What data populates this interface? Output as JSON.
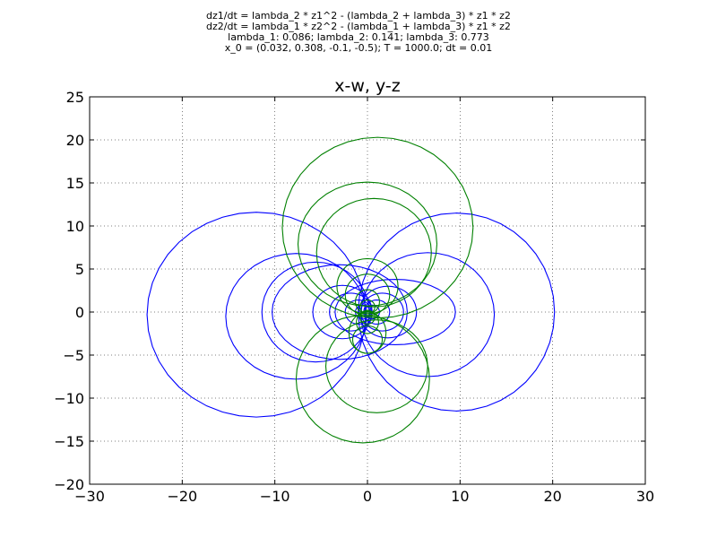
{
  "header": {
    "lines": [
      "dz1/dt = lambda_2 * z1^2 - (lambda_2 + lambda_3) * z1 * z2",
      "dz2/dt = lambda_1 * z2^2 - (lambda_1 + lambda_3) * z1 * z2",
      "lambda_1: 0.086; lambda_2: 0.141; lambda_3: 0.773",
      "x_0 = (0.032, 0.308, -0.1, -0.5); T = 1000.0; dt = 0.01"
    ]
  },
  "chart_data": {
    "type": "line",
    "title": "x-w, y-z",
    "xlabel": "",
    "ylabel": "",
    "xlim": [
      -30,
      30
    ],
    "ylim": [
      -20,
      25
    ],
    "xticks": [
      -30,
      -20,
      -10,
      0,
      10,
      20,
      30
    ],
    "yticks": [
      -20,
      -15,
      -10,
      -5,
      0,
      5,
      10,
      15,
      20,
      25
    ],
    "xtick_labels": [
      "−30",
      "−20",
      "−10",
      "0",
      "10",
      "20",
      "30"
    ],
    "ytick_labels": [
      "−20",
      "−15",
      "−10",
      "−5",
      "0",
      "5",
      "10",
      "15",
      "20",
      "25"
    ],
    "grid": true,
    "colors": {
      "series_1": "#0000ff",
      "series_2": "#008000"
    },
    "series": [
      {
        "color": "#0000ff",
        "loops": [
          {
            "cx": -12.0,
            "cy": -0.3,
            "rx": 11.8,
            "ry": 11.9
          },
          {
            "cx": 9.6,
            "cy": 0.0,
            "rx": 10.6,
            "ry": 11.5
          },
          {
            "cx": -7.7,
            "cy": -0.5,
            "rx": 7.6,
            "ry": 7.3
          },
          {
            "cx": 6.5,
            "cy": -0.3,
            "rx": 7.2,
            "ry": 7.2
          },
          {
            "cx": -5.6,
            "cy": 0.0,
            "rx": 5.8,
            "ry": 5.8
          },
          {
            "cx": -3.0,
            "cy": 0.0,
            "rx": 7.3,
            "ry": 5.5
          },
          {
            "cx": 3.0,
            "cy": 0.0,
            "rx": 6.5,
            "ry": 3.8
          },
          {
            "cx": -2.7,
            "cy": 0.0,
            "rx": 3.2,
            "ry": 3.1
          },
          {
            "cx": 2.2,
            "cy": 0.0,
            "rx": 3.1,
            "ry": 3.0
          },
          {
            "cx": -1.8,
            "cy": 0.0,
            "rx": 2.3,
            "ry": 2.2
          },
          {
            "cx": 1.6,
            "cy": 0.0,
            "rx": 2.3,
            "ry": 2.2
          },
          {
            "cx": -1.0,
            "cy": 0.0,
            "rx": 1.4,
            "ry": 1.4
          },
          {
            "cx": 1.0,
            "cy": 0.0,
            "rx": 1.4,
            "ry": 1.4
          },
          {
            "cx": -0.5,
            "cy": 0.0,
            "rx": 0.8,
            "ry": 0.8
          },
          {
            "cx": 0.5,
            "cy": 0.0,
            "rx": 0.8,
            "ry": 0.8
          }
        ]
      },
      {
        "color": "#008000",
        "loops": [
          {
            "cx": 1.1,
            "cy": 9.8,
            "rx": 10.3,
            "ry": 10.5
          },
          {
            "cx": 0.0,
            "cy": 7.9,
            "rx": 7.5,
            "ry": 7.2
          },
          {
            "cx": 0.7,
            "cy": 6.9,
            "rx": 6.2,
            "ry": 6.3
          },
          {
            "cx": -0.5,
            "cy": -7.8,
            "rx": 7.2,
            "ry": 7.4
          },
          {
            "cx": 1.0,
            "cy": -6.3,
            "rx": 5.5,
            "ry": 5.4
          },
          {
            "cx": 0.0,
            "cy": 3.0,
            "rx": 3.3,
            "ry": 3.2
          },
          {
            "cx": 0.0,
            "cy": 2.0,
            "rx": 2.4,
            "ry": 2.4
          },
          {
            "cx": 0.0,
            "cy": -2.4,
            "rx": 2.0,
            "ry": 2.4
          },
          {
            "cx": 0.0,
            "cy": -3.2,
            "rx": 1.6,
            "ry": 1.6
          },
          {
            "cx": 0.0,
            "cy": 1.2,
            "rx": 1.3,
            "ry": 1.4
          },
          {
            "cx": 0.0,
            "cy": -1.2,
            "rx": 1.2,
            "ry": 1.3
          },
          {
            "cx": 0.0,
            "cy": 0.6,
            "rx": 0.8,
            "ry": 0.8
          },
          {
            "cx": 0.0,
            "cy": -0.6,
            "rx": 0.8,
            "ry": 0.8
          }
        ]
      }
    ]
  }
}
